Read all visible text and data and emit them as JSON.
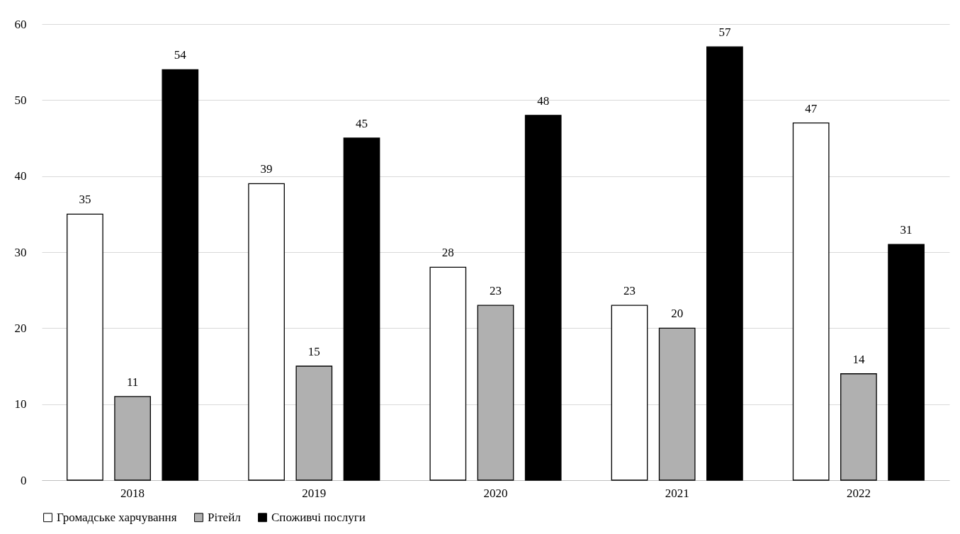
{
  "chart_data": {
    "type": "bar",
    "categories": [
      "2018",
      "2019",
      "2020",
      "2021",
      "2022"
    ],
    "series": [
      {
        "name": "Громадське харчування",
        "color": "#ffffff",
        "values": [
          35,
          39,
          28,
          23,
          47
        ]
      },
      {
        "name": "Рітейл",
        "color": "#b0b0b0",
        "values": [
          11,
          15,
          23,
          20,
          14
        ]
      },
      {
        "name": "Споживчі послуги",
        "color": "#000000",
        "values": [
          54,
          45,
          48,
          57,
          31
        ]
      }
    ],
    "ylim": [
      0,
      60
    ],
    "yticks": [
      0,
      10,
      20,
      30,
      40,
      50,
      60
    ],
    "grid": "y",
    "legend": "bottom",
    "data_labels": true
  }
}
